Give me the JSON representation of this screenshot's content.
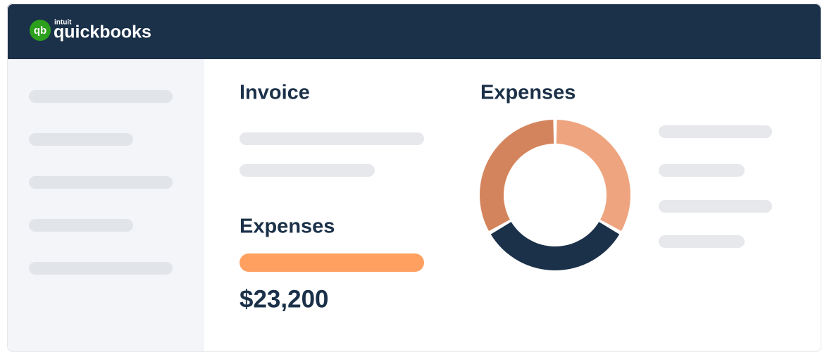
{
  "header": {
    "logo_mark": "qb",
    "brand": "intuit",
    "product": "quickbooks"
  },
  "invoice": {
    "title": "Invoice"
  },
  "expenses": {
    "title": "Expenses",
    "amount": "$23,200"
  },
  "expense_chart": {
    "type": "pie",
    "title": "Expenses",
    "values": [
      33.3,
      33.3,
      33.3
    ],
    "colors": [
      "#eea57f",
      "#1b3149",
      "#d4845c"
    ]
  }
}
